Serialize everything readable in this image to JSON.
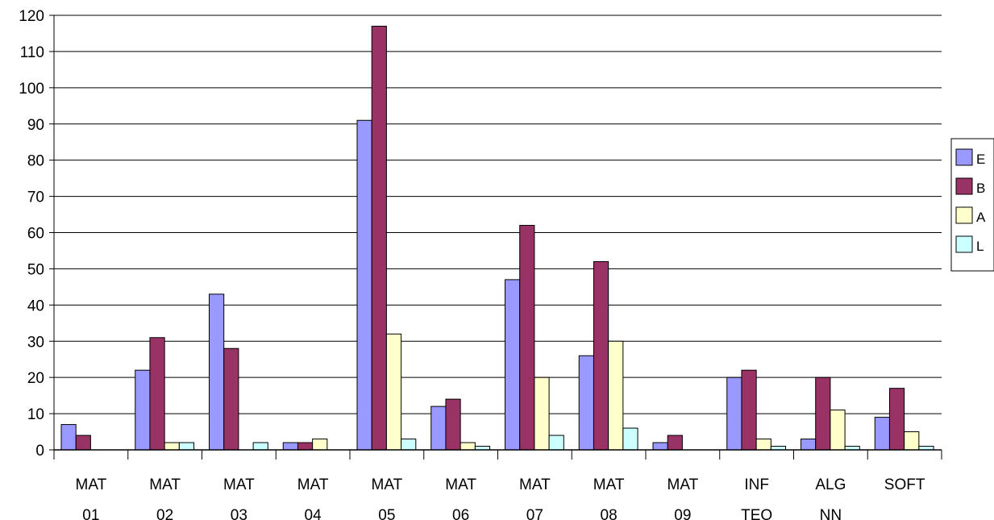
{
  "chart_data": {
    "type": "bar",
    "categories": [
      [
        "MAT",
        "01"
      ],
      [
        "MAT",
        "02"
      ],
      [
        "MAT",
        "03"
      ],
      [
        "MAT",
        "04"
      ],
      [
        "MAT",
        "05"
      ],
      [
        "MAT",
        "06"
      ],
      [
        "MAT",
        "07"
      ],
      [
        "MAT",
        "08"
      ],
      [
        "MAT",
        "09"
      ],
      [
        "INF",
        "TEO"
      ],
      [
        "ALG",
        "NN"
      ],
      [
        "SOFT",
        ""
      ]
    ],
    "series": [
      {
        "name": "E",
        "color": "#9999ff",
        "values": [
          7,
          22,
          43,
          2,
          91,
          12,
          47,
          26,
          2,
          20,
          3,
          9
        ]
      },
      {
        "name": "B",
        "color": "#993366",
        "values": [
          4,
          31,
          28,
          2,
          117,
          14,
          62,
          52,
          4,
          22,
          20,
          17
        ]
      },
      {
        "name": "A",
        "color": "#ffffcc",
        "values": [
          0,
          2,
          0,
          3,
          32,
          2,
          20,
          30,
          0,
          3,
          11,
          5
        ]
      },
      {
        "name": "L",
        "color": "#ccffff",
        "values": [
          0,
          2,
          2,
          0,
          3,
          1,
          4,
          6,
          0,
          1,
          1,
          1
        ]
      }
    ],
    "ylim": [
      0,
      120
    ],
    "yticks": [
      0,
      10,
      20,
      30,
      40,
      50,
      60,
      70,
      80,
      90,
      100,
      110,
      120
    ],
    "grid": true,
    "legend_position": "right",
    "title": "",
    "xlabel": "",
    "ylabel": ""
  }
}
